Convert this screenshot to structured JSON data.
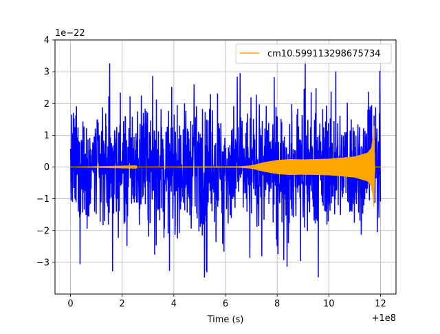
{
  "chart_data": {
    "type": "line",
    "title": "",
    "xlabel": "Time (s)",
    "ylabel": "",
    "x_offset_label": "+1e8",
    "y_scale_label": "1e−22",
    "xlim": [
      -0.6,
      12.6
    ],
    "ylim": [
      -4.0,
      4.0
    ],
    "xticks": [
      0,
      2,
      4,
      6,
      8,
      10,
      12
    ],
    "xtick_labels": [
      "0",
      "2",
      "4",
      "6",
      "8",
      "10",
      "12"
    ],
    "yticks": [
      -3,
      -2,
      -1,
      0,
      1,
      2,
      3,
      4
    ],
    "ytick_labels": [
      "−3",
      "−2",
      "−1",
      "0",
      "1",
      "2",
      "3",
      "4"
    ],
    "grid": true,
    "legend_position": "top-right",
    "series": [
      {
        "role": "noisy strain",
        "color": "#0000ff",
        "x_range": [
          0,
          12
        ],
        "typical_peak": 1.6,
        "max": 3.5,
        "min": -3.6
      },
      {
        "name": "cm10.599113298675734",
        "color": "#ffa500",
        "x_range": [
          0,
          12
        ],
        "envelope": [
          {
            "x": 0,
            "amp": 0.0
          },
          {
            "x": 6.5,
            "amp": 0.02
          },
          {
            "x": 7.0,
            "amp": 0.05
          },
          {
            "x": 7.5,
            "amp": 0.15
          },
          {
            "x": 8.0,
            "amp": 0.22
          },
          {
            "x": 8.5,
            "amp": 0.25
          },
          {
            "x": 9.0,
            "amp": 0.24
          },
          {
            "x": 10.0,
            "amp": 0.26
          },
          {
            "x": 11.0,
            "amp": 0.33
          },
          {
            "x": 11.5,
            "amp": 0.45
          },
          {
            "x": 11.65,
            "amp": 0.6
          },
          {
            "x": 11.72,
            "amp": 1.0
          },
          {
            "x": 11.75,
            "amp": 1.3
          },
          {
            "x": 11.78,
            "amp": 0.0
          },
          {
            "x": 12.0,
            "amp": 0.0
          }
        ]
      }
    ]
  }
}
